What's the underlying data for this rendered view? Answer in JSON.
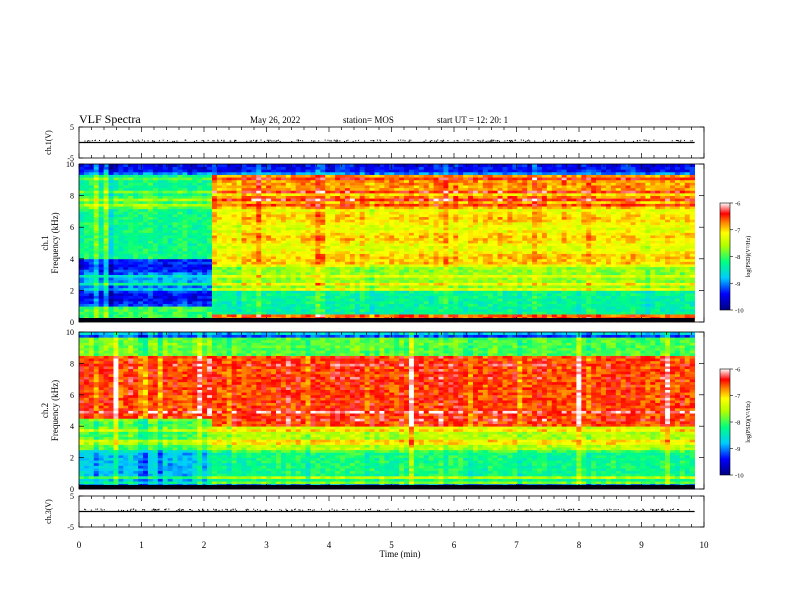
{
  "header": {
    "title": "VLF Spectra",
    "date": "May 26, 2022",
    "station": "station= MOS",
    "start": "start  UT =   12: 20: 1"
  },
  "chart_data": [
    {
      "type": "line",
      "panel": "ch1-waveform",
      "ylabel": "ch.1(V)",
      "ylim": [
        -5,
        5
      ],
      "y_ticks": [
        "5",
        "-5"
      ],
      "series": [
        {
          "x": [
            0,
            9.85
          ],
          "values": [
            0,
            0
          ]
        }
      ]
    },
    {
      "type": "heatmap",
      "panel": "ch1-spectrogram",
      "ylabel": "ch.1\nFrequency (kHz)",
      "ylim": [
        0,
        10
      ],
      "y_ticks": [
        "0",
        "2",
        "4",
        "6",
        "8",
        "10"
      ],
      "x_range_min": [
        0,
        9.85
      ],
      "regime_change_min": 2.1,
      "colorbar": {
        "min": -10,
        "max": -6,
        "ticks": [
          "-6",
          "-7",
          "-8",
          "-9",
          "-10"
        ],
        "label": "log(PSD)(V²/Hz)"
      }
    },
    {
      "type": "heatmap",
      "panel": "ch2-spectrogram",
      "ylabel": "ch.2\nFrequency (kHz)",
      "ylim": [
        0,
        10
      ],
      "y_ticks": [
        "0",
        "2",
        "4",
        "6",
        "8",
        "10"
      ],
      "x_range_min": [
        0,
        9.85
      ],
      "regime_change_min": 2.1,
      "colorbar": {
        "min": -10,
        "max": -6,
        "ticks": [
          "-6",
          "-7",
          "-8",
          "-9",
          "-10"
        ],
        "label": "log(PSD)(V²/Hz)"
      }
    },
    {
      "type": "line",
      "panel": "ch3-waveform",
      "ylabel": "ch.3(V)",
      "ylim": [
        -5,
        5
      ],
      "y_ticks": [
        "5",
        "-5"
      ],
      "series": [
        {
          "x": [
            0,
            9.85
          ],
          "values": [
            0,
            0
          ]
        }
      ]
    }
  ],
  "x_axis": {
    "label": "Time  (min)",
    "ticks": [
      "0",
      "1",
      "2",
      "3",
      "4",
      "5",
      "6",
      "7",
      "8",
      "9",
      "10"
    ],
    "range": [
      0,
      10
    ]
  },
  "colors": {
    "colormap": [
      "#000080",
      "#0000ff",
      "#00a0ff",
      "#00ffff",
      "#00ff80",
      "#80ff00",
      "#ffff00",
      "#ff8000",
      "#ff0000",
      "#ffffff"
    ]
  }
}
